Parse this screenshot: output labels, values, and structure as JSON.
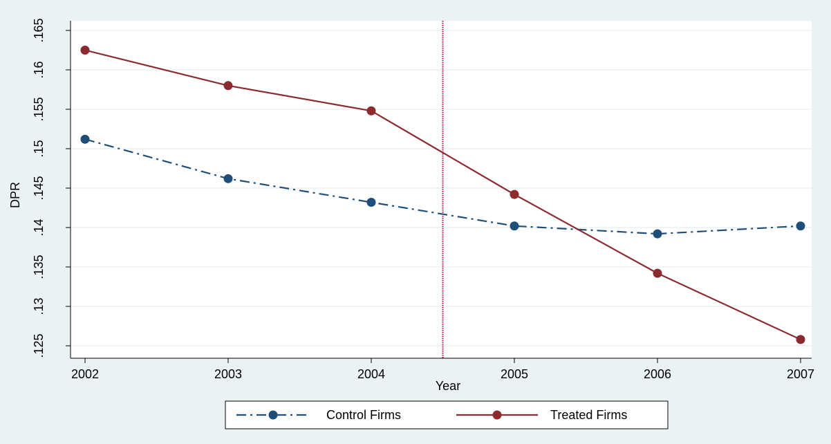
{
  "chart_data": {
    "type": "line",
    "x": [
      2002,
      2003,
      2004,
      2005,
      2006,
      2007
    ],
    "series": [
      {
        "name": "Control Firms",
        "values": [
          0.1512,
          0.1462,
          0.1432,
          0.1402,
          0.1392,
          0.1402
        ],
        "color": "#1f4e79",
        "line_style": "dash-dot"
      },
      {
        "name": "Treated Firms",
        "values": [
          0.1625,
          0.158,
          0.1548,
          0.1442,
          0.1342,
          0.1258
        ],
        "color": "#8b2a2f",
        "line_style": "solid"
      }
    ],
    "xlabel": "Year",
    "ylabel": "DPR",
    "xlim": [
      2002,
      2007
    ],
    "ylim": [
      0.125,
      0.165
    ],
    "x_ticks": [
      "2002",
      "2003",
      "2004",
      "2005",
      "2006",
      "2007"
    ],
    "y_ticks": [
      {
        "value": 0.125,
        "label": ".125"
      },
      {
        "value": 0.13,
        "label": ".13"
      },
      {
        "value": 0.135,
        "label": ".135"
      },
      {
        "value": 0.14,
        "label": ".14"
      },
      {
        "value": 0.145,
        "label": ".145"
      },
      {
        "value": 0.15,
        "label": ".15"
      },
      {
        "value": 0.155,
        "label": ".155"
      },
      {
        "value": 0.16,
        "label": ".16"
      },
      {
        "value": 0.165,
        "label": ".165"
      }
    ],
    "reference_line_x": 2004.5,
    "reference_line_color": "#c0003c",
    "grid": true,
    "legend_position": "bottom",
    "background_color": "#eaf2f3",
    "plot_background_color": "#ffffff"
  }
}
